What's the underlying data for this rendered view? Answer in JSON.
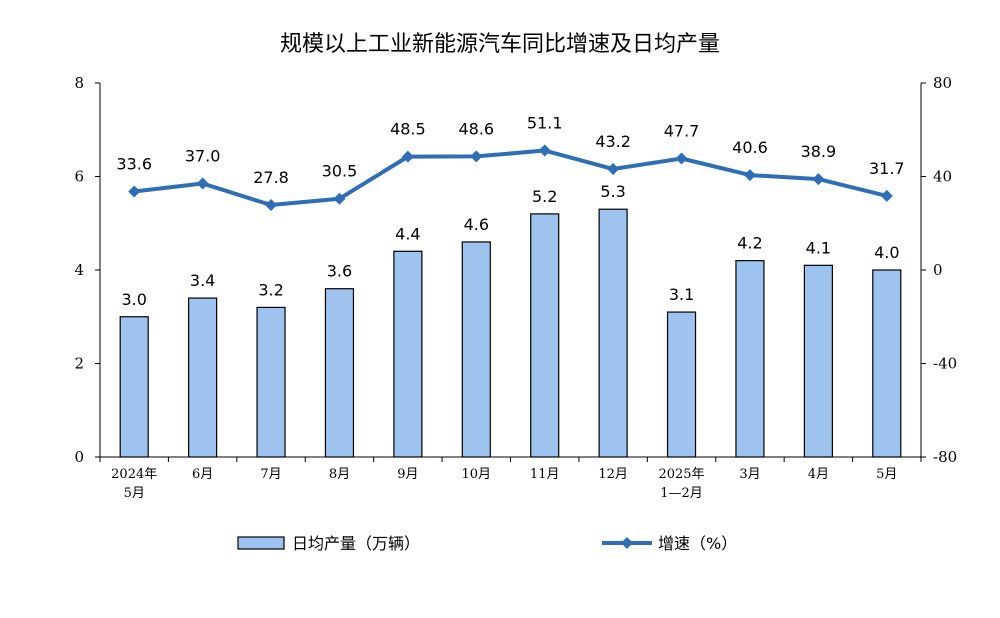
{
  "chart_data": {
    "type": "bar",
    "title": "规模以上工业新能源汽车同比增速及日均产量",
    "categories": [
      [
        "2024年",
        "5月"
      ],
      [
        "6月"
      ],
      [
        "7月"
      ],
      [
        "8月"
      ],
      [
        "9月"
      ],
      [
        "10月"
      ],
      [
        "11月"
      ],
      [
        "12月"
      ],
      [
        "2025年",
        "1—2月"
      ],
      [
        "3月"
      ],
      [
        "4月"
      ],
      [
        "5月"
      ]
    ],
    "series": [
      {
        "name": "日均产量（万辆）",
        "type": "bar",
        "axis": "left",
        "color": "#9dc3ee",
        "values": [
          3.0,
          3.4,
          3.2,
          3.6,
          4.4,
          4.6,
          5.2,
          5.3,
          3.1,
          4.2,
          4.1,
          4.0
        ],
        "labels": [
          "3.0",
          "3.4",
          "3.2",
          "3.6",
          "4.4",
          "4.6",
          "5.2",
          "5.3",
          "3.1",
          "4.2",
          "4.1",
          "4.0"
        ]
      },
      {
        "name": "增速（%）",
        "type": "line",
        "axis": "right",
        "color": "#2f6eb5",
        "values": [
          33.6,
          37.0,
          27.8,
          30.5,
          48.5,
          48.6,
          51.1,
          43.2,
          47.7,
          40.6,
          38.9,
          31.7
        ],
        "labels": [
          "33.6",
          "37.0",
          "27.8",
          "30.5",
          "48.5",
          "48.6",
          "51.1",
          "43.2",
          "47.7",
          "40.6",
          "38.9",
          "31.7"
        ]
      }
    ],
    "y_left": {
      "min": 0,
      "max": 8,
      "ticks": [
        "0",
        "2",
        "4",
        "6",
        "8"
      ]
    },
    "y_right": {
      "min": -80,
      "max": 80,
      "ticks": [
        "-80",
        "-40",
        "0",
        "40",
        "80"
      ]
    },
    "grid": false,
    "legend_position": "bottom"
  }
}
